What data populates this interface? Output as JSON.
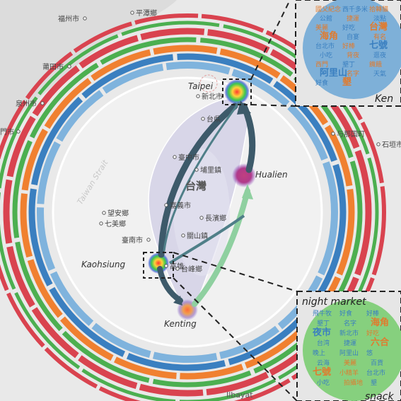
{
  "map": {
    "strait_label": "Taiwan Strait",
    "island_label": "台灣",
    "bottom_label": "Ilbayat",
    "places": [
      {
        "name": "Taipei",
        "label": "Taipei"
      },
      {
        "name": "Hualien",
        "label": "Hualien"
      },
      {
        "name": "Kaohsiung",
        "label": "Kaohsiung"
      },
      {
        "name": "Kenting",
        "label": "Kenting"
      }
    ],
    "towns": [
      {
        "key": "fuzhou",
        "label": "福州市"
      },
      {
        "key": "putian",
        "label": "莆田市"
      },
      {
        "key": "quanzhou",
        "label": "泉州市"
      },
      {
        "key": "xiamen",
        "label": "門市"
      },
      {
        "key": "changle",
        "label": "平潭鄉"
      },
      {
        "key": "xinbei",
        "label": "新北市"
      },
      {
        "key": "taoyuan",
        "label": "台県"
      },
      {
        "key": "taichung",
        "label": "臺中市"
      },
      {
        "key": "puli",
        "label": "埔里鎮"
      },
      {
        "key": "chiayi",
        "label": "嘉義市"
      },
      {
        "key": "changbin",
        "label": "長濱鄉"
      },
      {
        "key": "guanshan",
        "label": "關山鎮"
      },
      {
        "key": "tainan",
        "label": "臺南市"
      },
      {
        "key": "kaohsiung_zh",
        "label": "高雄"
      },
      {
        "key": "taitung",
        "label": "台峰鄉"
      },
      {
        "key": "wangan",
        "label": "望安鄉"
      },
      {
        "key": "qimei",
        "label": "七美鄉"
      },
      {
        "key": "yonaguni",
        "label": "与那国町"
      },
      {
        "key": "ishigaki",
        "label": "石垣市"
      }
    ],
    "colors": {
      "red": "#d9434f",
      "green": "#4caf50",
      "orange": "#f08030",
      "blue": "#3a7fc0",
      "lightblue": "#7fb3dd",
      "arrow_dark": "#3d5a6a",
      "arrow_light": "#8fd0a0"
    }
  },
  "inset_top": {
    "caption": "Ken",
    "words": [
      {
        "text": "國父紀念",
        "color": "#e07b2e"
      },
      {
        "text": "西千多米",
        "color": "#3a7fc0"
      },
      {
        "text": "拾轉貓",
        "color": "#e07b2e"
      },
      {
        "text": "公館",
        "color": "#3a7fc0"
      },
      {
        "text": "捷運",
        "color": "#e07b2e"
      },
      {
        "text": "淡點",
        "color": "#3a7fc0"
      },
      {
        "text": "美麗",
        "color": "#e07b2e"
      },
      {
        "text": "好吃",
        "color": "#3a7fc0"
      },
      {
        "text": "台灣",
        "color": "#e07b2e"
      },
      {
        "text": "海角",
        "color": "#e07b2e"
      },
      {
        "text": "自宴",
        "color": "#3a7fc0"
      },
      {
        "text": "有名",
        "color": "#e07b2e"
      },
      {
        "text": "台北市",
        "color": "#3a7fc0"
      },
      {
        "text": "好棒",
        "color": "#e07b2e"
      },
      {
        "text": "七號",
        "color": "#3a7fc0"
      },
      {
        "text": "小吃",
        "color": "#3a7fc0"
      },
      {
        "text": "背夜",
        "color": "#e07b2e"
      },
      {
        "text": "逛夜",
        "color": "#3a7fc0"
      },
      {
        "text": "西門",
        "color": "#e07b2e"
      },
      {
        "text": "墾丁",
        "color": "#3a7fc0"
      },
      {
        "text": "饑餓",
        "color": "#e07b2e"
      },
      {
        "text": "阿里山",
        "color": "#3a7fc0"
      },
      {
        "text": "名字",
        "color": "#e07b2e"
      },
      {
        "text": "天氣",
        "color": "#3a7fc0"
      },
      {
        "text": "好食",
        "color": "#3a7fc0"
      },
      {
        "text": "墾",
        "color": "#e07b2e"
      }
    ]
  },
  "inset_bottom": {
    "title": "night market",
    "caption": "snack",
    "words": [
      {
        "text": "飛牛牧",
        "color": "#3a7fc0"
      },
      {
        "text": "好食",
        "color": "#3a7fc0"
      },
      {
        "text": "好棒",
        "color": "#3a7fc0"
      },
      {
        "text": "墾丁",
        "color": "#3a7fc0"
      },
      {
        "text": "名字",
        "color": "#3a7fc0"
      },
      {
        "text": "海角",
        "color": "#e07b2e"
      },
      {
        "text": "夜市",
        "color": "#3a7fc0"
      },
      {
        "text": "新北市",
        "color": "#3a7fc0"
      },
      {
        "text": "好吃",
        "color": "#e07b2e"
      },
      {
        "text": "台湾",
        "color": "#3a7fc0"
      },
      {
        "text": "捷運",
        "color": "#3a7fc0"
      },
      {
        "text": "六合",
        "color": "#e07b2e"
      },
      {
        "text": "晚上",
        "color": "#3a7fc0"
      },
      {
        "text": "阿里山",
        "color": "#3a7fc0"
      },
      {
        "text": "悠",
        "color": "#3a7fc0"
      },
      {
        "text": "云海",
        "color": "#3a7fc0"
      },
      {
        "text": "美麗",
        "color": "#e07b2e"
      },
      {
        "text": "百貨",
        "color": "#3a7fc0"
      },
      {
        "text": "七號",
        "color": "#e07b2e"
      },
      {
        "text": "小精羊",
        "color": "#e07b2e"
      },
      {
        "text": "台北市",
        "color": "#3a7fc0"
      },
      {
        "text": "小吃",
        "color": "#3a7fc0"
      },
      {
        "text": "拍攝地",
        "color": "#e07b2e"
      },
      {
        "text": "墾",
        "color": "#3a7fc0"
      }
    ]
  }
}
